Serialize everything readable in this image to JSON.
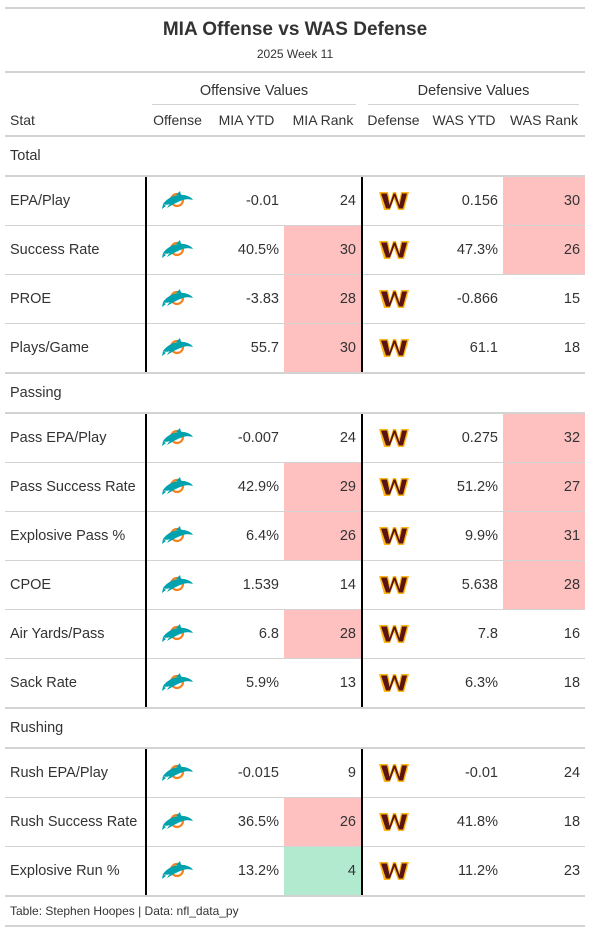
{
  "title": "MIA Offense vs WAS Defense",
  "subtitle": "2025 Week 11",
  "spanners": {
    "offense": "Offensive Values",
    "defense": "Defensive Values"
  },
  "columns": {
    "stat": "Stat",
    "offense": "Offense",
    "off_ytd": "MIA YTD",
    "off_rank": "MIA Rank",
    "defense": "Defense",
    "def_ytd": "WAS YTD",
    "def_rank": "WAS Rank"
  },
  "colors": {
    "bad_rank": "#ffc0c0",
    "good_rank": "#b2ead0",
    "dolphins_aqua": "#00a3ad",
    "dolphins_orange": "#f58220",
    "commanders_burgundy": "#5a1414",
    "commanders_gold": "#ffb612"
  },
  "offense_logo_icon": "dolphins-logo-icon",
  "defense_logo_icon": "commanders-logo-icon",
  "chart_data": {
    "type": "table",
    "title": "MIA Offense vs WAS Defense",
    "subtitle": "2025 Week 11",
    "groups": [
      {
        "name": "Total",
        "rows": [
          {
            "stat": "EPA/Play",
            "off_ytd": "-0.01",
            "off_rank": "24",
            "off_hl": "",
            "def_ytd": "0.156",
            "def_rank": "30",
            "def_hl": "bad"
          },
          {
            "stat": "Success Rate",
            "off_ytd": "40.5%",
            "off_rank": "30",
            "off_hl": "bad",
            "def_ytd": "47.3%",
            "def_rank": "26",
            "def_hl": "bad"
          },
          {
            "stat": "PROE",
            "off_ytd": "-3.83",
            "off_rank": "28",
            "off_hl": "bad",
            "def_ytd": "-0.866",
            "def_rank": "15",
            "def_hl": ""
          },
          {
            "stat": "Plays/Game",
            "off_ytd": "55.7",
            "off_rank": "30",
            "off_hl": "bad",
            "def_ytd": "61.1",
            "def_rank": "18",
            "def_hl": ""
          }
        ]
      },
      {
        "name": "Passing",
        "rows": [
          {
            "stat": "Pass EPA/Play",
            "off_ytd": "-0.007",
            "off_rank": "24",
            "off_hl": "",
            "def_ytd": "0.275",
            "def_rank": "32",
            "def_hl": "bad"
          },
          {
            "stat": "Pass Success Rate",
            "off_ytd": "42.9%",
            "off_rank": "29",
            "off_hl": "bad",
            "def_ytd": "51.2%",
            "def_rank": "27",
            "def_hl": "bad"
          },
          {
            "stat": "Explosive Pass %",
            "off_ytd": "6.4%",
            "off_rank": "26",
            "off_hl": "bad",
            "def_ytd": "9.9%",
            "def_rank": "31",
            "def_hl": "bad"
          },
          {
            "stat": "CPOE",
            "off_ytd": "1.539",
            "off_rank": "14",
            "off_hl": "",
            "def_ytd": "5.638",
            "def_rank": "28",
            "def_hl": "bad"
          },
          {
            "stat": "Air Yards/Pass",
            "off_ytd": "6.8",
            "off_rank": "28",
            "off_hl": "bad",
            "def_ytd": "7.8",
            "def_rank": "16",
            "def_hl": ""
          },
          {
            "stat": "Sack Rate",
            "off_ytd": "5.9%",
            "off_rank": "13",
            "off_hl": "",
            "def_ytd": "6.3%",
            "def_rank": "18",
            "def_hl": ""
          }
        ]
      },
      {
        "name": "Rushing",
        "rows": [
          {
            "stat": "Rush EPA/Play",
            "off_ytd": "-0.015",
            "off_rank": "9",
            "off_hl": "",
            "def_ytd": "-0.01",
            "def_rank": "24",
            "def_hl": ""
          },
          {
            "stat": "Rush Success Rate",
            "off_ytd": "36.5%",
            "off_rank": "26",
            "off_hl": "bad",
            "def_ytd": "41.8%",
            "def_rank": "18",
            "def_hl": ""
          },
          {
            "stat": "Explosive Run %",
            "off_ytd": "13.2%",
            "off_rank": "4",
            "off_hl": "good",
            "def_ytd": "11.2%",
            "def_rank": "23",
            "def_hl": ""
          }
        ]
      }
    ]
  },
  "footer": "Table: Stephen Hoopes | Data: nfl_data_py"
}
